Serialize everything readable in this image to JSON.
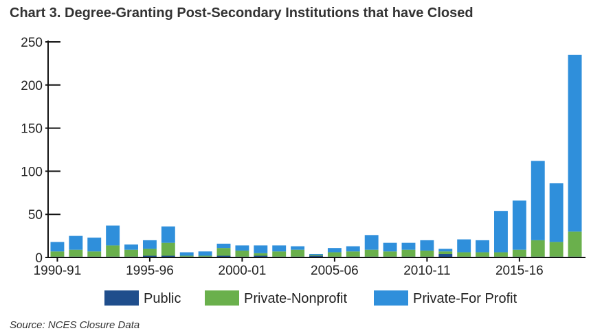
{
  "title": "Chart 3. Degree-Granting Post-Secondary Institutions that have Closed",
  "source": "Source: NCES Closure Data",
  "colors": {
    "public": "#1f4e8c",
    "nonprofit": "#6ab04c",
    "forprofit": "#2f8fdb",
    "axis": "#111111"
  },
  "chart_data": {
    "type": "bar",
    "stacked": true,
    "categories": [
      "1990-91",
      "1991-92",
      "1992-93",
      "1993-94",
      "1994-95",
      "1995-96",
      "1996-97",
      "1997-98",
      "1998-99",
      "1999-00",
      "2000-01",
      "2001-02",
      "2002-03",
      "2003-04",
      "2004-05",
      "2005-06",
      "2006-07",
      "2007-08",
      "2008-09",
      "2009-10",
      "2010-11",
      "2011-12",
      "2012-13",
      "2013-14",
      "2014-15",
      "2015-16",
      "2016-17",
      "2017-18",
      "2018-19"
    ],
    "x_tick_labels": [
      {
        "index": 0,
        "label": "1990-91"
      },
      {
        "index": 5,
        "label": "1995-96"
      },
      {
        "index": 10,
        "label": "2000-01"
      },
      {
        "index": 15,
        "label": "2005-06"
      },
      {
        "index": 20,
        "label": "2010-11"
      },
      {
        "index": 25,
        "label": "2015-16"
      }
    ],
    "series": [
      {
        "name": "Public",
        "values": [
          1,
          1,
          1,
          1,
          1,
          2,
          2,
          1,
          1,
          2,
          1,
          2,
          1,
          1,
          2,
          1,
          1,
          1,
          1,
          1,
          1,
          4,
          1,
          1,
          1,
          1,
          1,
          1,
          1
        ]
      },
      {
        "name": "Private-Nonprofit",
        "values": [
          6,
          8,
          6,
          13,
          8,
          8,
          15,
          1,
          1,
          9,
          7,
          3,
          6,
          8,
          1,
          5,
          6,
          8,
          6,
          8,
          7,
          3,
          5,
          5,
          5,
          8,
          19,
          17,
          29
        ]
      },
      {
        "name": "Private-For Profit",
        "values": [
          11,
          16,
          16,
          23,
          6,
          10,
          19,
          4,
          5,
          5,
          6,
          9,
          7,
          4,
          1,
          5,
          6,
          17,
          10,
          8,
          12,
          3,
          15,
          14,
          48,
          57,
          92,
          68,
          205
        ]
      }
    ],
    "ylim": [
      0,
      250
    ],
    "yticks": [
      0,
      50,
      100,
      150,
      200,
      250
    ],
    "grid": false,
    "legend_position": "bottom"
  }
}
